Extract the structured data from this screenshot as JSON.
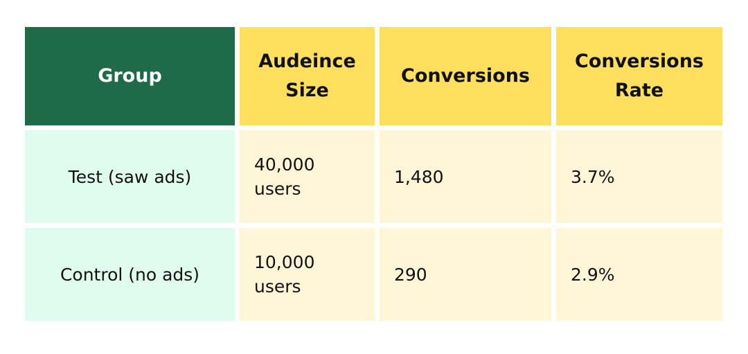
{
  "table": {
    "headers": [
      "Group",
      "Audeince Size",
      "Conversions",
      "Conversions Rate"
    ],
    "rows": [
      [
        "Test (saw ads)",
        "40,000 users",
        "1,480",
        "3.7%"
      ],
      [
        "Control (no ads)",
        "10,000 users",
        "290",
        "2.9%"
      ]
    ]
  },
  "colors": {
    "header_first": "#1f6a47",
    "header": "#ffdf5d",
    "group_cell": "#e0fcf0",
    "body_cell": "#fff6d8"
  }
}
